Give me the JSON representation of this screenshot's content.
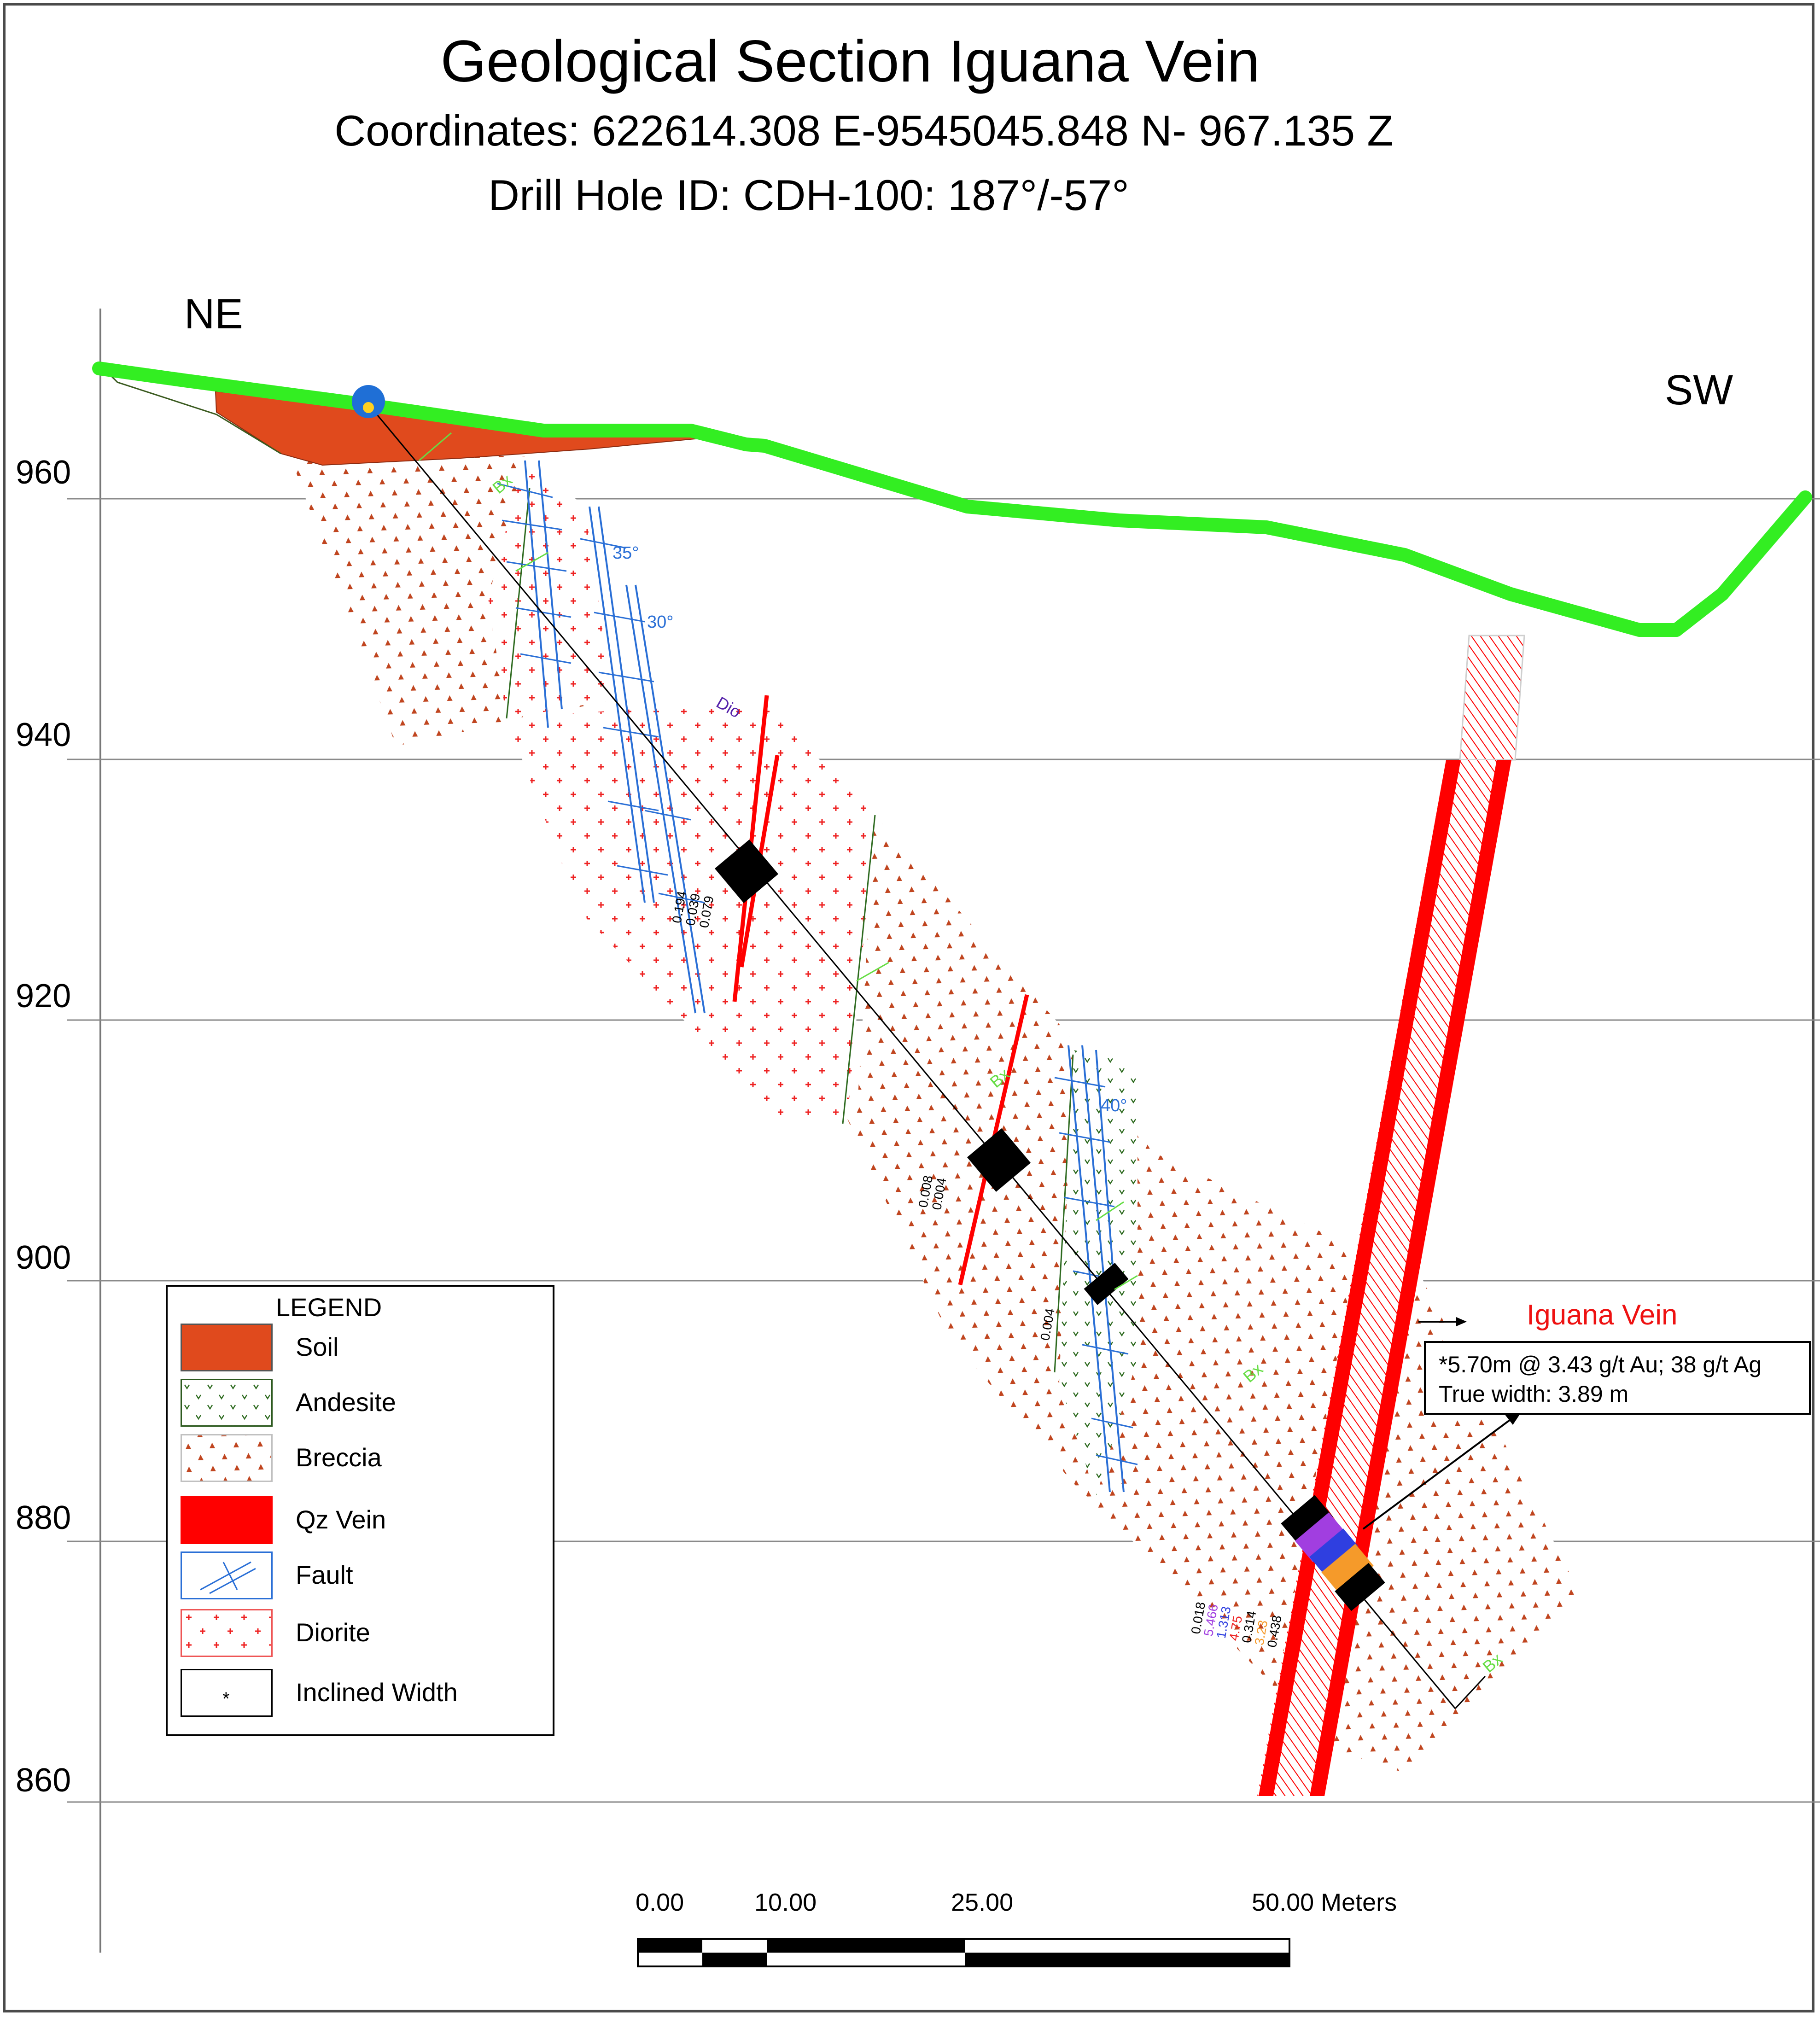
{
  "header": {
    "title": "Geological Section Iguana Vein",
    "coordinates": "Coordinates: 622614.308 E-9545045.848 N- 967.135 Z",
    "drill_hole": "Drill Hole ID: CDH-100: 187°/-57°"
  },
  "directions": {
    "left": "NE",
    "right": "SW"
  },
  "elevation_axis": {
    "ticks": [
      "960",
      "940",
      "920",
      "900",
      "880",
      "860"
    ],
    "range": [
      845,
      975
    ]
  },
  "annotations": {
    "dip_angles": [
      "35°",
      "30°",
      "40°"
    ],
    "unit_labels": {
      "bx": "Bx",
      "dio": "Dio"
    },
    "vein_label": "Iguana Vein",
    "assays_upper": [
      "0.194",
      "0.039",
      "0.079"
    ],
    "assays_middle": [
      "0.008",
      "0.004"
    ],
    "assays_lower_single": "0.004",
    "assays_vein": [
      "0.018",
      "5.466",
      "1.313",
      "4.75",
      "0.314",
      "3.23",
      "0.438"
    ],
    "intercept": {
      "line1": "*5.70m @ 3.43 g/t Au; 38 g/t Ag",
      "line2": "True width: 3.89 m"
    }
  },
  "legend": {
    "title": "LEGEND",
    "items": [
      {
        "label": "Soil",
        "swatch": "soil"
      },
      {
        "label": "Andesite",
        "swatch": "andesite"
      },
      {
        "label": "Breccia",
        "swatch": "breccia"
      },
      {
        "label": "Qz Vein",
        "swatch": "qz"
      },
      {
        "label": "Fault",
        "swatch": "fault"
      },
      {
        "label": "Diorite",
        "swatch": "diorite"
      },
      {
        "label": "Inclined Width",
        "swatch": "incl",
        "marker": "*"
      }
    ]
  },
  "scale_bar": {
    "labels": [
      "0.00",
      "10.00",
      "25.00",
      "50.00 Meters"
    ]
  },
  "colors": {
    "topography": "#33ee22",
    "soil": "#e04a1d",
    "breccia_dots": "#c0451f",
    "diorite_cross": "#ee2222",
    "andesite": "#2d6a1f",
    "fault": "#2a6fd6",
    "qz_vein": "#ff0000",
    "drill_hole": "#000000"
  }
}
